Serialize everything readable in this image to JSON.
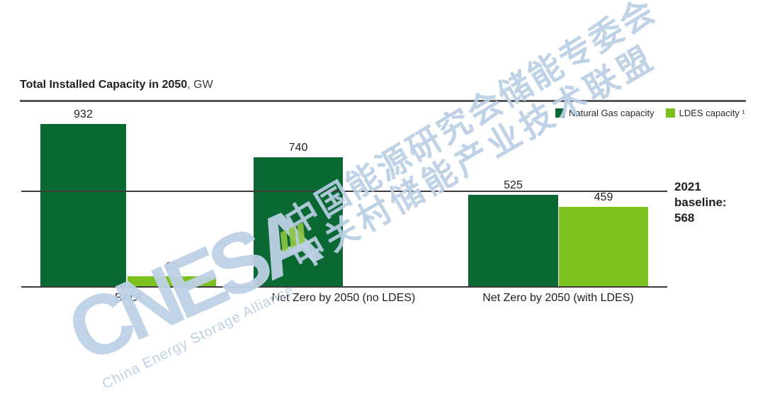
{
  "title": {
    "main": "Total Installed Capacity in 2050",
    "unit": ", GW"
  },
  "legend": [
    {
      "label": "Natural Gas capacity",
      "color": "#0a6933"
    },
    {
      "label": "LDES capacity ¹",
      "color": "#7cc21f"
    }
  ],
  "baseline_annotation": "2021\nbaseline:\n568",
  "watermark": {
    "logo_text": "CNESA",
    "tagline": "China Energy Storage Alliance",
    "chinese_line1": "中国能源研究会储能专委会",
    "chinese_line2": "中关村储能产业技术联盟",
    "color": "#bcd0e6",
    "stripe_color": "#8dc63f"
  },
  "chart_data": {
    "type": "bar",
    "title": "Total Installed Capacity in 2050, GW",
    "categories": [
      "BAU²",
      "Net Zero by 2050 (no LDES)",
      "Net Zero by 2050 (with LDES)"
    ],
    "series": [
      {
        "name": "Natural Gas capacity",
        "color": "#0a6933",
        "values": [
          932,
          740,
          525
        ]
      },
      {
        "name": "LDES capacity",
        "color": "#7cc21f",
        "values": [
          62,
          null,
          459
        ]
      }
    ],
    "baseline": {
      "value": 568,
      "label": "2021 baseline: 568"
    },
    "ylim": [
      0,
      1000
    ],
    "grid": false,
    "legend_position": "top-right",
    "value_labels": true
  }
}
